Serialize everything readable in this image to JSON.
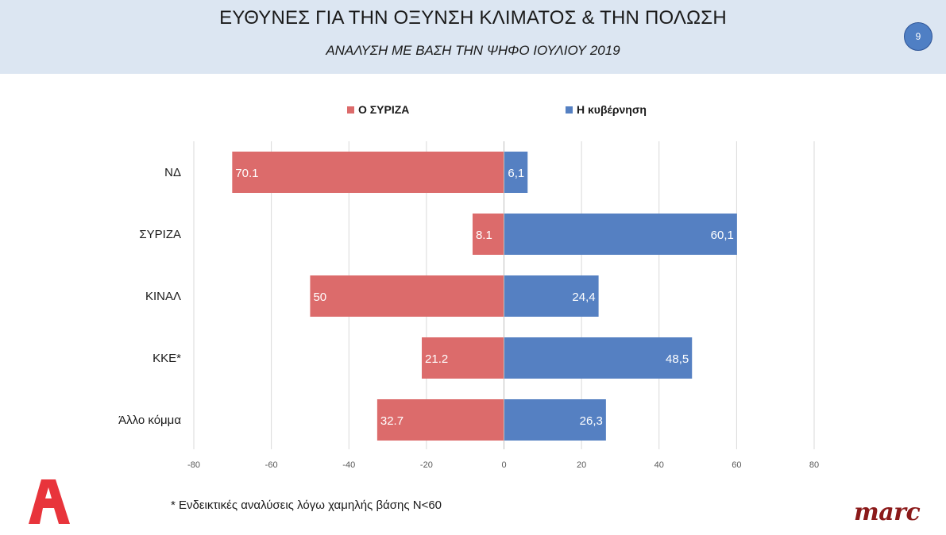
{
  "header": {
    "title": "ΕΥΘΥΝΕΣ ΓΙΑ ΤΗΝ ΟΞΥΝΣΗ ΚΛΙΜΑΤΟΣ & ΤΗΝ ΠΟΛΩΣΗ",
    "subtitle": "ΑΝΑΛΥΣΗ ΜΕ ΒΑΣΗ ΤΗΝ ΨΗΦΟ ΙΟΥΛΙΟΥ 2019",
    "page_number": "9"
  },
  "colors": {
    "syriza": "#dc6b6b",
    "government": "#5580c2",
    "header_bg": "#dce6f2",
    "brand": "#8b1a1a",
    "logo_a": "#e8343b"
  },
  "chart_data": {
    "type": "bar",
    "orientation": "horizontal",
    "stacked": "diverging",
    "categories": [
      "ΝΔ",
      "ΣΥΡΙΖΑ",
      "ΚΙΝΑΛ",
      "ΚΚΕ*",
      "Άλλο κόμμα"
    ],
    "series": [
      {
        "name": "Ο ΣΥΡΙΖΑ",
        "values": [
          -70.1,
          -8.1,
          -50,
          -21.2,
          -32.7
        ],
        "labels": [
          "70.1",
          "8.1",
          "50",
          "21.2",
          "32.7"
        ]
      },
      {
        "name": "Η κυβέρνηση",
        "values": [
          6.1,
          60.1,
          24.4,
          48.5,
          26.3
        ],
        "labels": [
          "6,1",
          "60,1",
          "24,4",
          "48,5",
          "26,3"
        ]
      }
    ],
    "xlim": [
      -80,
      80
    ],
    "xticks": [
      "-80",
      "-60",
      "-40",
      "-20",
      "0",
      "20",
      "40",
      "60",
      "80"
    ],
    "grid": true,
    "legend": "top-center"
  },
  "footnote": "* Ενδεικτικές αναλύσεις λόγω χαμηλής βάσης Ν<60",
  "logos": {
    "brand_icon": "alpha-logo-icon",
    "marc": "marc"
  }
}
